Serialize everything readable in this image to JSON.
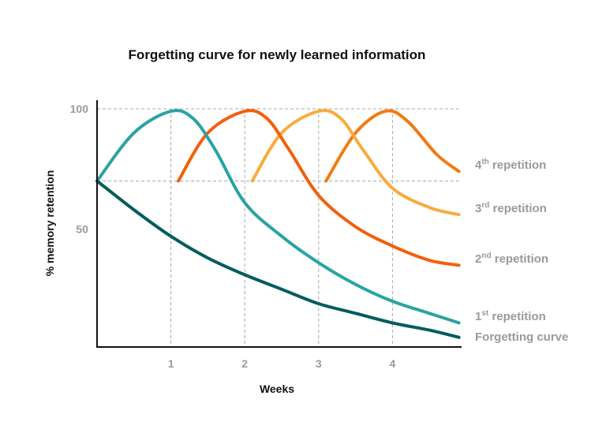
{
  "chart_data": {
    "type": "line",
    "title": "Forgetting curve for newly learned information",
    "xlabel": "Weeks",
    "ylabel": "% memory retention",
    "xlim": [
      0,
      4.9
    ],
    "ylim": [
      0,
      100
    ],
    "x_ticks": [
      "1",
      "2",
      "3",
      "4"
    ],
    "y_ticks": [
      "100",
      "50"
    ],
    "grid": "dashed reference lines at 100 and 70, and at weeks 1-4",
    "series": [
      {
        "name": "Forgetting curve",
        "label_main": "Forgetting curve",
        "label_sup": "",
        "label_rest": "",
        "color": "#045c5c",
        "x": [
          0,
          0.5,
          1,
          1.5,
          2,
          2.5,
          3,
          3.5,
          4,
          4.5,
          4.9
        ],
        "y": [
          70,
          58,
          47,
          38,
          31,
          25,
          19,
          15,
          11,
          8,
          5
        ]
      },
      {
        "name": "1st repetition",
        "label_main": "1",
        "label_sup": "st",
        "label_rest": " repetition",
        "color": "#2aa3a3",
        "x": [
          0,
          0.5,
          1,
          1.3,
          1.6,
          2,
          2.5,
          3,
          3.5,
          4,
          4.5,
          4.9
        ],
        "y": [
          70,
          90,
          99,
          96,
          83,
          61,
          47,
          36,
          27,
          20,
          15,
          11
        ]
      },
      {
        "name": "2nd repetition",
        "label_main": "2",
        "label_sup": "nd",
        "label_rest": " repetition",
        "color": "#f2600c",
        "x": [
          1.1,
          1.5,
          2,
          2.3,
          2.6,
          3,
          3.5,
          4,
          4.5,
          4.9
        ],
        "y": [
          70,
          90,
          99,
          96,
          83,
          64,
          51,
          43,
          37,
          35
        ]
      },
      {
        "name": "3rd repetition",
        "label_main": "3",
        "label_sup": "rd",
        "label_rest": " repetition",
        "color": "#f8ac3e",
        "x": [
          2.1,
          2.5,
          3,
          3.3,
          3.6,
          4,
          4.5,
          4.9
        ],
        "y": [
          70,
          90,
          99,
          96,
          83,
          67,
          59,
          56
        ]
      },
      {
        "name": "4th repetition",
        "label_main": "4",
        "label_sup": "th",
        "label_rest": " repetition",
        "color": "#f27a12",
        "x": [
          3.1,
          3.5,
          3.9,
          4.2,
          4.6,
          4.9
        ],
        "y": [
          70,
          90,
          99,
          95,
          81,
          74
        ]
      }
    ]
  }
}
